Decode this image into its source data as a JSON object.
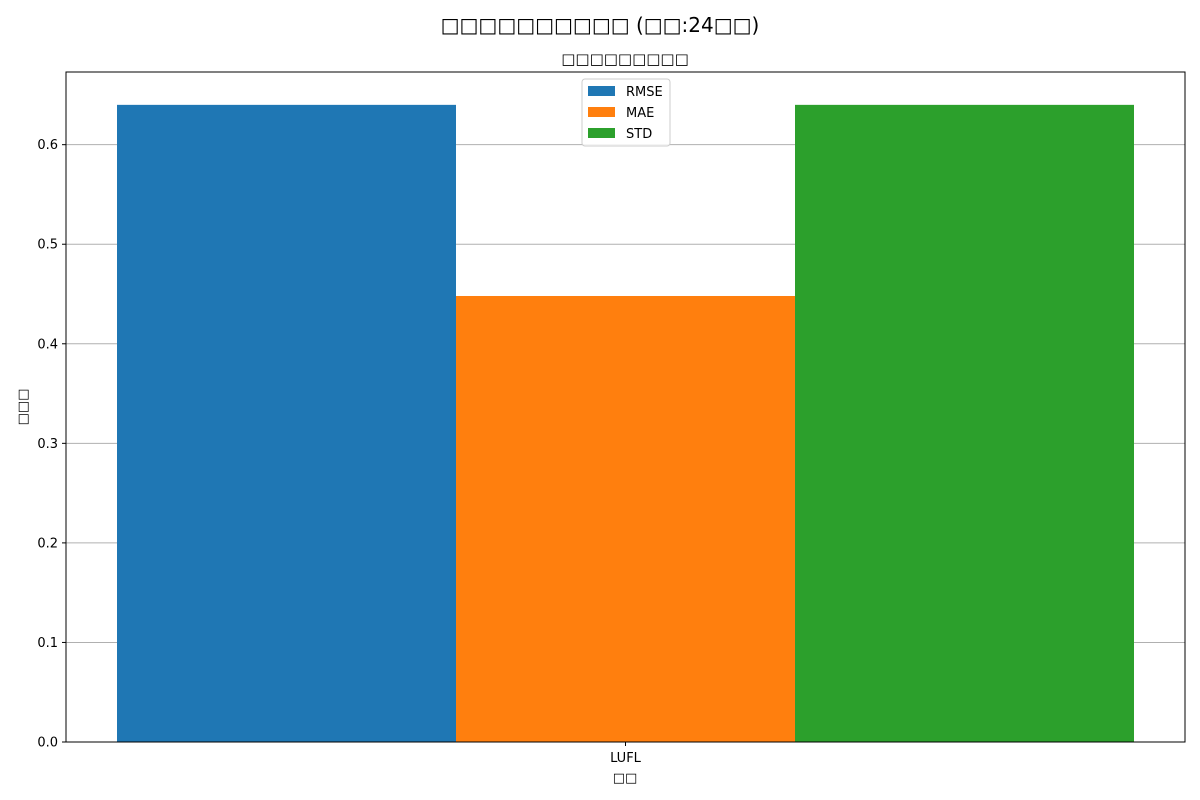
{
  "chart_data": {
    "type": "bar",
    "title": "□□□□□□□□□□ (□□:24□□)",
    "subtitle": "□□□□□□□□□",
    "xlabel": "□□",
    "ylabel": "□□□",
    "categories": [
      "LUFL"
    ],
    "series": [
      {
        "name": "RMSE",
        "values": [
          0.64
        ],
        "color": "#1f77b4"
      },
      {
        "name": "MAE",
        "values": [
          0.448
        ],
        "color": "#ff7f0e"
      },
      {
        "name": "STD",
        "values": [
          0.64
        ],
        "color": "#2ca02c"
      }
    ],
    "ylim": [
      0,
      0.673
    ],
    "yticks": [
      "0.0",
      "0.1",
      "0.2",
      "0.3",
      "0.4",
      "0.5",
      "0.6"
    ],
    "grid": "horizontal",
    "legend_position": "top-center"
  }
}
